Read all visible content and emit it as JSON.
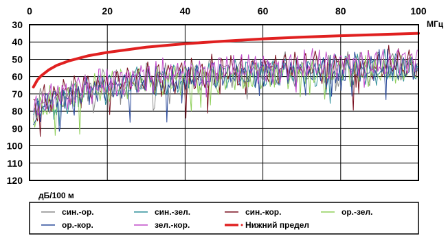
{
  "chart_data": {
    "type": "line",
    "title": "",
    "x_unit_label": "МГц",
    "y_unit_label": "дБ/100 м",
    "xlim": [
      0,
      100
    ],
    "ylim": [
      30,
      120
    ],
    "y_inverted": true,
    "grid": true,
    "legend_placement": "bottom",
    "x_ticks": [
      "0",
      "20",
      "40",
      "60",
      "80",
      "100"
    ],
    "y_ticks": [
      "30",
      "40",
      "50",
      "60",
      "70",
      "80",
      "90",
      "100",
      "110",
      "120"
    ],
    "limit_series": {
      "name": "Нижний предел",
      "color": "#e02020",
      "x": [
        1,
        2,
        3,
        5,
        7,
        10,
        15,
        20,
        30,
        40,
        50,
        60,
        70,
        80,
        90,
        100
      ],
      "y": [
        66,
        62,
        59.5,
        56,
        53.5,
        51,
        48,
        46,
        43,
        41,
        39.5,
        38.2,
        37.2,
        36.4,
        35.7,
        35
      ]
    },
    "series": [
      {
        "name": "син.-ор.",
        "color": "#8c8c8c",
        "x": [
          1,
          2,
          5,
          10,
          15,
          20,
          30,
          40,
          50,
          60,
          70,
          80,
          90,
          100
        ],
        "y": [
          80,
          78,
          74,
          70,
          67,
          65,
          62,
          60,
          58,
          57,
          56,
          55,
          54,
          54
        ]
      },
      {
        "name": "син.-зел.",
        "color": "#2f8f9a",
        "x": [
          1,
          2,
          5,
          10,
          15,
          20,
          30,
          40,
          50,
          60,
          70,
          80,
          90,
          100
        ],
        "y": [
          82,
          79,
          75,
          71,
          68,
          66,
          63,
          61,
          59,
          58,
          57,
          56,
          55,
          55
        ]
      },
      {
        "name": "син.-кор.",
        "color": "#7a1020",
        "x": [
          1,
          2,
          5,
          10,
          15,
          20,
          30,
          40,
          50,
          60,
          70,
          80,
          90,
          100
        ],
        "y": [
          81,
          78,
          73,
          69,
          66,
          64,
          61,
          59,
          57,
          56,
          55,
          54,
          53,
          52
        ]
      },
      {
        "name": "ор.-зел.",
        "color": "#8fcf5a",
        "x": [
          1,
          2,
          5,
          10,
          15,
          20,
          30,
          40,
          50,
          60,
          70,
          80,
          90,
          100
        ],
        "y": [
          84,
          80,
          76,
          72,
          69,
          66,
          63,
          61,
          60,
          59,
          58,
          57,
          57,
          56
        ]
      },
      {
        "name": "ор.-кор.",
        "color": "#2a4a9a",
        "x": [
          1,
          2,
          5,
          10,
          15,
          20,
          30,
          40,
          50,
          60,
          70,
          80,
          90,
          100
        ],
        "y": [
          83,
          80,
          75,
          71,
          68,
          66,
          63,
          61,
          59,
          58,
          57,
          56,
          55,
          55
        ]
      },
      {
        "name": "зел.-кор.",
        "color": "#c04ac8",
        "x": [
          1,
          2,
          5,
          10,
          15,
          20,
          30,
          40,
          50,
          60,
          70,
          80,
          90,
          100
        ],
        "y": [
          80,
          77,
          72,
          68,
          65,
          63,
          60,
          58,
          56,
          55,
          54,
          53,
          52,
          51
        ]
      }
    ]
  }
}
